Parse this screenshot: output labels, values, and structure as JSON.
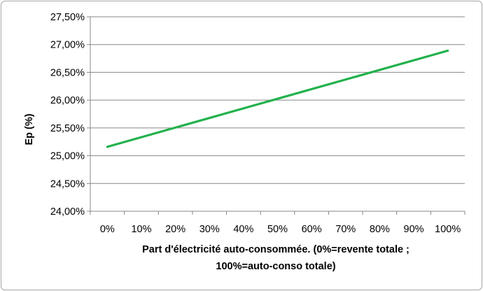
{
  "chart_data": {
    "type": "line",
    "x_tick_labels": [
      "0%",
      "10%",
      "20%",
      "30%",
      "40%",
      "50%",
      "60%",
      "70%",
      "80%",
      "90%",
      "100%"
    ],
    "y_tick_labels": [
      "24,00%",
      "24,50%",
      "25,00%",
      "25,50%",
      "26,00%",
      "26,50%",
      "27,00%",
      "27,50%"
    ],
    "ylabel": "Ep (%)",
    "xlabel_lines": [
      "Part d'électricité auto-consommée. (0%=revente totale ;",
      "100%=auto-conso totale)"
    ],
    "ylim": [
      24.0,
      27.5
    ],
    "y_tick_step": 0.5,
    "grid": {
      "horizontal": true,
      "vertical": false
    },
    "legend": "none",
    "series": [
      {
        "color": "#22b14c",
        "x": [
          0,
          100
        ],
        "values": [
          25.16,
          26.89
        ]
      }
    ]
  }
}
